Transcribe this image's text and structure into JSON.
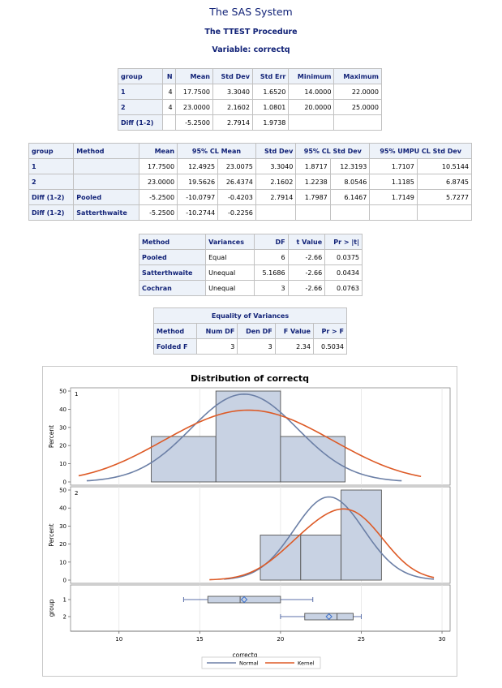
{
  "titles": {
    "system": "The SAS System",
    "procedure": "The TTEST Procedure",
    "variable": "Variable: correctq"
  },
  "stats_table": {
    "headers": [
      "group",
      "N",
      "Mean",
      "Std Dev",
      "Std Err",
      "Minimum",
      "Maximum"
    ],
    "rows": [
      [
        "1",
        "4",
        "17.7500",
        "3.3040",
        "1.6520",
        "14.0000",
        "22.0000"
      ],
      [
        "2",
        "4",
        "23.0000",
        "2.1602",
        "1.0801",
        "20.0000",
        "25.0000"
      ],
      [
        "Diff (1-2)",
        "",
        "-5.2500",
        "2.7914",
        "1.9738",
        "",
        ""
      ]
    ]
  },
  "cl_table": {
    "headers": [
      "group",
      "Method",
      "Mean",
      "95% CL Mean",
      "Std Dev",
      "95% CL Std Dev",
      "95% UMPU CL Std Dev"
    ],
    "rows": [
      [
        "1",
        "",
        "17.7500",
        "12.4925",
        "23.0075",
        "3.3040",
        "1.8717",
        "12.3193",
        "1.7107",
        "10.5144"
      ],
      [
        "2",
        "",
        "23.0000",
        "19.5626",
        "26.4374",
        "2.1602",
        "1.2238",
        "8.0546",
        "1.1185",
        "6.8745"
      ],
      [
        "Diff (1-2)",
        "Pooled",
        "-5.2500",
        "-10.0797",
        "-0.4203",
        "2.7914",
        "1.7987",
        "6.1467",
        "1.7149",
        "5.7277"
      ],
      [
        "Diff (1-2)",
        "Satterthwaite",
        "-5.2500",
        "-10.2744",
        "-0.2256",
        "",
        "",
        "",
        "",
        ""
      ]
    ]
  },
  "ttest_table": {
    "headers": [
      "Method",
      "Variances",
      "DF",
      "t Value",
      "Pr > |t|"
    ],
    "rows": [
      [
        "Pooled",
        "Equal",
        "6",
        "-2.66",
        "0.0375"
      ],
      [
        "Satterthwaite",
        "Unequal",
        "5.1686",
        "-2.66",
        "0.0434"
      ],
      [
        "Cochran",
        "Unequal",
        "3",
        "-2.66",
        "0.0763"
      ]
    ]
  },
  "equality_table": {
    "title": "Equality of Variances",
    "headers": [
      "Method",
      "Num DF",
      "Den DF",
      "F Value",
      "Pr > F"
    ],
    "rows": [
      [
        "Folded F",
        "3",
        "3",
        "2.34",
        "0.5034"
      ]
    ]
  },
  "chart_data": {
    "type": "bar",
    "title": "Distribution of correctq",
    "xlabel": "correctq",
    "ylabel": "Percent",
    "xlim": [
      7,
      30.5
    ],
    "xticks": [
      "10",
      "15",
      "20",
      "25",
      "30"
    ],
    "ylim": [
      0,
      50
    ],
    "yticks": [
      "0",
      "10",
      "20",
      "30",
      "40",
      "50"
    ],
    "grid": true,
    "colors": {
      "bar_fill": "#c8d2e3",
      "bar_stroke": "#555555",
      "normal": "#6b7fa6",
      "kernel": "#dd5a26",
      "box": "#c8d2e3",
      "box_stroke": "#555555",
      "whisker": "#5b6fa8"
    },
    "panels": [
      {
        "group": "1",
        "bins": [
          {
            "x0": 12,
            "x1": 16,
            "value": 25
          },
          {
            "x0": 16,
            "x1": 20,
            "value": 50
          },
          {
            "x0": 20,
            "x1": 24,
            "value": 25
          }
        ],
        "normal": {
          "mean": 17.75,
          "sd": 3.304,
          "range": [
            8,
            27.5
          ]
        },
        "kernel": {
          "points": [
            12.5,
            14.5,
            16.5,
            17.5,
            18.5,
            19.5,
            21.5,
            23.5
          ],
          "bw": 3.3,
          "scale_peak": 39.5,
          "range": [
            7.5,
            28.7
          ]
        }
      },
      {
        "group": "2",
        "bins": [
          {
            "x0": 18.75,
            "x1": 21.25,
            "value": 25
          },
          {
            "x0": 21.25,
            "x1": 23.75,
            "value": 25
          },
          {
            "x0": 23.75,
            "x1": 26.25,
            "value": 50
          }
        ],
        "normal": {
          "mean": 23.0,
          "sd": 2.1602,
          "range": [
            16.5,
            29.5
          ]
        },
        "kernel": {
          "points": [
            21,
            22.5,
            24,
            25,
            25
          ],
          "bw": 1.9,
          "scale_peak": 39.5,
          "range": [
            15.6,
            29.5
          ]
        }
      }
    ],
    "box": {
      "ylabel": "group",
      "groups": [
        {
          "name": "1",
          "min": 14,
          "q1": 15.5,
          "median": 17.5,
          "q3": 20,
          "max": 22,
          "mean": 17.75
        },
        {
          "name": "2",
          "min": 20,
          "q1": 21.5,
          "median": 23.5,
          "q3": 24.5,
          "max": 25,
          "mean": 23.0
        }
      ]
    },
    "legend": {
      "position": "bottom",
      "entries": [
        {
          "name": "Normal",
          "color": "#6b7fa6"
        },
        {
          "name": "Kernel",
          "color": "#dd5a26"
        }
      ]
    }
  }
}
